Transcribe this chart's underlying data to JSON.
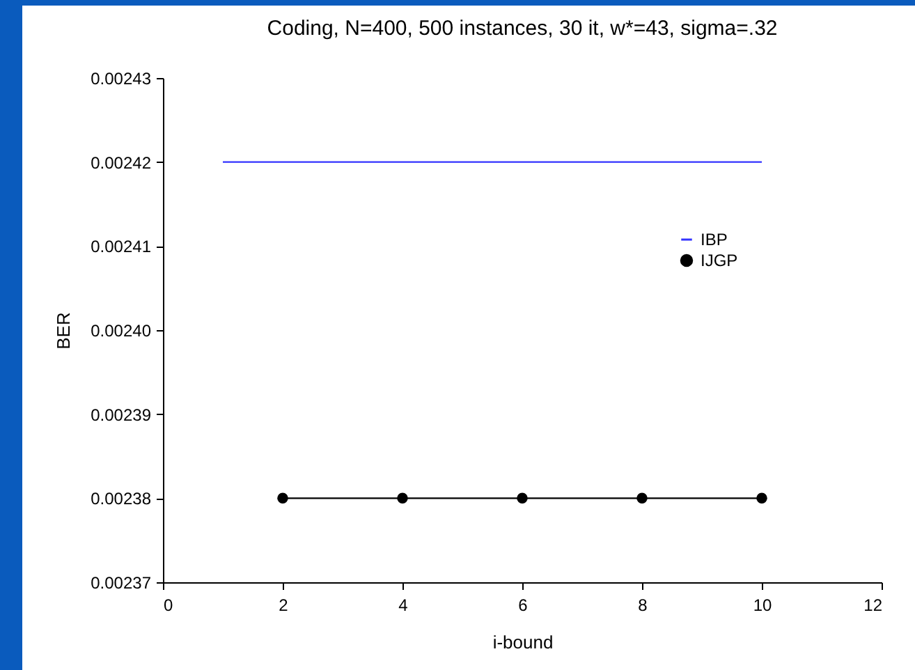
{
  "chart_data": {
    "type": "line",
    "title": "Coding, N=400, 500 instances, 30 it, w*=43, sigma=.32",
    "xlabel": "i-bound",
    "ylabel": "BER",
    "series": [
      {
        "name": "IBP",
        "color": "#3333ff",
        "marker": "none",
        "x": [
          1,
          10
        ],
        "values": [
          0.00242,
          0.00242
        ]
      },
      {
        "name": "IJGP",
        "color": "#000000",
        "marker": "circle",
        "x": [
          2,
          4,
          6,
          8,
          10
        ],
        "values": [
          0.00238,
          0.00238,
          0.00238,
          0.00238,
          0.00238
        ]
      }
    ],
    "xlim": [
      0,
      12
    ],
    "xticks": [
      0,
      2,
      4,
      6,
      8,
      10,
      12
    ],
    "ylim": [
      0.00237,
      0.00243
    ],
    "yticks": [
      0.00237,
      0.00238,
      0.00239,
      {
        "value": 0.0024,
        "label": "0.00240"
      },
      0.00241,
      0.00242,
      0.00243
    ],
    "grid": false,
    "legend": "right"
  }
}
